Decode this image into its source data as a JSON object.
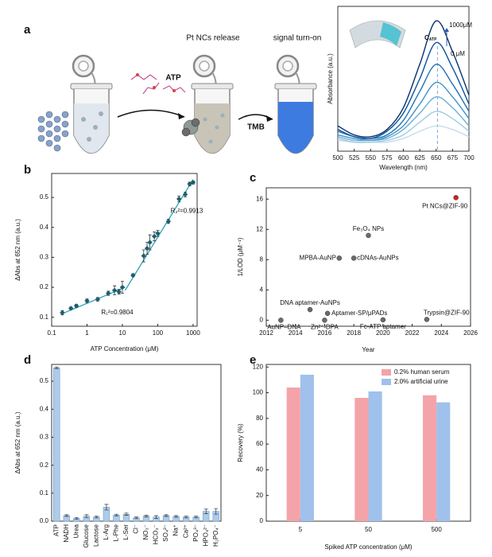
{
  "panel_labels": [
    "a",
    "b",
    "c",
    "d",
    "e"
  ],
  "diagram": {
    "step1": "Pt NCs release",
    "step2": "signal turn-on",
    "reagent1": "ATP",
    "reagent2": "TMB"
  },
  "chart_data": [
    {
      "type": "line",
      "xlabel": "Wavelength (nm)",
      "ylabel": "Absorbance (a.u.)",
      "x": [
        500,
        525,
        550,
        575,
        600,
        625,
        650,
        675,
        700
      ],
      "xlim": [
        500,
        700
      ],
      "xticks": [
        500,
        525,
        550,
        575,
        600,
        625,
        650,
        675,
        700
      ],
      "ylim": [
        0,
        0.8
      ],
      "vline": 652,
      "annotation_top": "1000μM",
      "annotation_bottom": "0 μM",
      "annotation_arrow": {
        "main": "C",
        "sub": "ATP"
      },
      "series": [
        {
          "color": "#c6dbef",
          "values": [
            0.06,
            0.05,
            0.05,
            0.05,
            0.07,
            0.11,
            0.14,
            0.12,
            0.08
          ]
        },
        {
          "color": "#9ecae1",
          "values": [
            0.07,
            0.05,
            0.05,
            0.06,
            0.09,
            0.16,
            0.22,
            0.18,
            0.11
          ]
        },
        {
          "color": "#6baed6",
          "values": [
            0.08,
            0.06,
            0.06,
            0.07,
            0.12,
            0.21,
            0.3,
            0.24,
            0.14
          ]
        },
        {
          "color": "#4292c6",
          "values": [
            0.09,
            0.07,
            0.06,
            0.08,
            0.14,
            0.26,
            0.38,
            0.3,
            0.18
          ]
        },
        {
          "color": "#2171b5",
          "values": [
            0.11,
            0.08,
            0.07,
            0.09,
            0.17,
            0.33,
            0.48,
            0.37,
            0.22
          ]
        },
        {
          "color": "#08519c",
          "values": [
            0.12,
            0.08,
            0.07,
            0.11,
            0.21,
            0.4,
            0.6,
            0.46,
            0.26
          ]
        },
        {
          "color": "#08306b",
          "values": [
            0.14,
            0.09,
            0.08,
            0.12,
            0.24,
            0.48,
            0.72,
            0.55,
            0.31
          ]
        }
      ]
    },
    {
      "type": "scatter",
      "xlabel": "ATP Concentration (μM)",
      "ylabel": "ΔAbs at 652 nm (a.u.)",
      "xscale": "log",
      "xlim": [
        0.1,
        1300
      ],
      "xticks": [
        0.1,
        1,
        10,
        100,
        1000
      ],
      "ylim": [
        0.07,
        0.58
      ],
      "yticks": [
        0.1,
        0.2,
        0.3,
        0.4,
        0.5
      ],
      "marker": "diamond",
      "color": "#1d5f6e",
      "x": [
        0.2,
        0.35,
        0.5,
        1,
        2,
        4,
        6,
        8,
        10,
        20,
        40,
        50,
        60,
        80,
        100,
        200,
        400,
        600,
        800,
        1000
      ],
      "values": [
        0.115,
        0.13,
        0.138,
        0.155,
        0.16,
        0.18,
        0.19,
        0.185,
        0.2,
        0.24,
        0.305,
        0.33,
        0.35,
        0.37,
        0.38,
        0.42,
        0.495,
        0.51,
        0.545,
        0.55
      ],
      "errors": [
        0.007,
        0.004,
        0.005,
        0.006,
        0.006,
        0.007,
        0.015,
        0.008,
        0.02,
        0.005,
        0.02,
        0.02,
        0.025,
        0.015,
        0.01,
        0.007,
        0.01,
        0.008,
        0.006,
        0.005
      ],
      "fits": [
        {
          "x": [
            0.2,
            12
          ],
          "values": [
            0.112,
            0.2
          ],
          "label": "R₁²=0.9804",
          "color": "#2aa3b5"
        },
        {
          "x": [
            12,
            1000
          ],
          "values": [
            0.19,
            0.56
          ],
          "label": "R₂²=0.9913",
          "color": "#2aa3b5"
        }
      ]
    },
    {
      "type": "scatter",
      "xlabel": "Year",
      "ylabel": "1/LOD (μM⁻¹)",
      "xlim": [
        2012,
        2026
      ],
      "xticks": [
        2012,
        2014,
        2016,
        2018,
        2020,
        2022,
        2024,
        2026
      ],
      "ylim": [
        -0.8,
        17.5
      ],
      "yticks": [
        0,
        4,
        8,
        12,
        16
      ],
      "marker": "circle",
      "color": "#6b6b6b",
      "x": [
        2013,
        2015,
        2016,
        2016.2,
        2017,
        2018,
        2019,
        2020,
        2023,
        2025
      ],
      "values": [
        0,
        1.4,
        0,
        0.9,
        8.2,
        8.2,
        11.2,
        0.05,
        0.1,
        16.2
      ],
      "labels": [
        "AuNP–DNA",
        "DNA aptamer-AuNPs",
        "Zn²⁺-DPA",
        "Aptamer-SP/μPADs",
        "MPBA-AuNP",
        "cDNAs-AuNPs",
        "Fe₃O₄ NPs",
        "Fc-ATP aptamer",
        "Trypsin@ZIF-90",
        "Pt NCs@ZIF-90"
      ],
      "point_colors": [
        "#6b6b6b",
        "#6b6b6b",
        "#6b6b6b",
        "#6b6b6b",
        "#6b6b6b",
        "#6b6b6b",
        "#6b6b6b",
        "#6b6b6b",
        "#6b6b6b",
        "#d42020"
      ],
      "label_colors": [
        "#111111",
        "#111111",
        "#111111",
        "#111111",
        "#111111",
        "#111111",
        "#111111",
        "#111111",
        "#111111",
        "#d42020"
      ]
    },
    {
      "type": "bar",
      "ylabel": "ΔAbs at 652 nm (a.u.)",
      "categories": [
        "ATP",
        "NADH",
        "Urea",
        "Glucose",
        "Lactose",
        "L-Arg",
        "L-Phe",
        "L-Ser",
        "Cl⁻",
        "NO₃⁻",
        "HCO₃⁻",
        "SO₄²⁻",
        "Na⁺",
        "Ca²⁺",
        "PO₄³⁻",
        "HPO₄²⁻",
        "H₂PO₄⁻"
      ],
      "values": [
        0.548,
        0.02,
        0.01,
        0.018,
        0.015,
        0.05,
        0.022,
        0.025,
        0.012,
        0.018,
        0.015,
        0.02,
        0.017,
        0.015,
        0.015,
        0.035,
        0.035
      ],
      "errors": [
        0.003,
        0.003,
        0.003,
        0.005,
        0.003,
        0.01,
        0.003,
        0.004,
        0.003,
        0.003,
        0.005,
        0.003,
        0.003,
        0.003,
        0.003,
        0.008,
        0.01
      ],
      "color": "#aecbeb",
      "edge_color": "#6b9bd1",
      "ylim": [
        0,
        0.56
      ],
      "yticks": [
        {
          "value": 0,
          "label": "0.0"
        },
        0.1,
        0.2,
        0.3,
        0.4,
        0.5
      ]
    },
    {
      "type": "grouped_bar",
      "xlabel": "Spiked  ATP concentration (μM)",
      "ylabel": "Recovery (%)",
      "categories": [
        "5",
        "50",
        "500"
      ],
      "ylim": [
        0,
        122
      ],
      "yticks": [
        0,
        20,
        40,
        60,
        80,
        100,
        120
      ],
      "legend": "upper right",
      "series": [
        {
          "name": "0.2% human serum",
          "color": "#f4a3a8",
          "values": [
            104,
            96,
            98
          ]
        },
        {
          "name": "2.0% artificial urine",
          "color": "#9fc1ec",
          "values": [
            114,
            101,
            92.5
          ]
        }
      ]
    }
  ]
}
